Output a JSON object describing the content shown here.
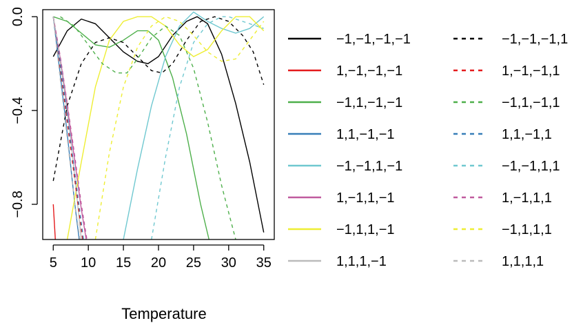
{
  "chart_data": {
    "type": "line",
    "title": "",
    "xlabel": "Temperature",
    "ylabel": "",
    "xlim": [
      3.5,
      36.5
    ],
    "ylim": [
      -0.95,
      0.03
    ],
    "xticks": [
      5,
      10,
      15,
      20,
      25,
      30,
      35
    ],
    "xtick_labels": [
      "5",
      "10",
      "15",
      "20",
      "25",
      "30",
      "35"
    ],
    "yticks": [
      0,
      -0.4,
      -0.8
    ],
    "ytick_labels": [
      "0.0",
      "−0.4",
      "−0.8"
    ],
    "legend_position": "right",
    "series": [
      {
        "name": "−1,−1,−1,−1",
        "color": "#000000",
        "dash": "solid",
        "x": [
          5,
          7,
          9,
          11,
          13,
          15,
          17,
          18.5,
          20,
          22,
          24,
          25.5,
          27,
          29,
          31,
          33,
          35
        ],
        "y": [
          -0.17,
          -0.06,
          -0.01,
          -0.03,
          -0.09,
          -0.15,
          -0.19,
          -0.2,
          -0.17,
          -0.08,
          -0.02,
          0.0,
          -0.03,
          -0.16,
          -0.37,
          -0.62,
          -0.92
        ]
      },
      {
        "name": "1,−1,−1,−1",
        "color": "#e41a1c",
        "dash": "solid",
        "x": [
          5,
          5.3
        ],
        "y": [
          -0.8,
          -0.95
        ]
      },
      {
        "name": "−1,1,−1,−1",
        "color": "#4daf4a",
        "dash": "solid",
        "x": [
          5,
          7,
          9,
          11,
          13,
          15,
          17,
          18.5,
          20,
          22,
          24,
          26,
          27.2
        ],
        "y": [
          0.0,
          -0.02,
          -0.07,
          -0.12,
          -0.13,
          -0.1,
          -0.06,
          -0.06,
          -0.1,
          -0.26,
          -0.5,
          -0.8,
          -0.95
        ]
      },
      {
        "name": "1,1,−1,−1",
        "color": "#377eb8",
        "dash": "solid",
        "x": [
          5,
          6,
          7,
          8,
          8.7
        ],
        "y": [
          0.0,
          -0.25,
          -0.5,
          -0.78,
          -0.95
        ]
      },
      {
        "name": "−1,−1,1,−1",
        "color": "#6fc8d0",
        "dash": "solid",
        "x": [
          15,
          17,
          19,
          21,
          23,
          25,
          27,
          29,
          31,
          33,
          35
        ],
        "y": [
          -0.95,
          -0.65,
          -0.38,
          -0.17,
          -0.04,
          0.02,
          -0.02,
          -0.05,
          -0.07,
          -0.05,
          0.0
        ]
      },
      {
        "name": "1,−1,1,−1",
        "color": "#c05a9e",
        "dash": "solid",
        "x": [
          5,
          6,
          7,
          8,
          9,
          9.7
        ],
        "y": [
          0.0,
          -0.18,
          -0.38,
          -0.6,
          -0.82,
          -0.95
        ]
      },
      {
        "name": "−1,1,1,−1",
        "color": "#eeee33",
        "dash": "solid",
        "x": [
          7,
          9,
          11,
          13,
          15,
          17,
          19,
          21,
          23,
          25,
          27,
          29,
          31,
          33,
          35
        ],
        "y": [
          -0.95,
          -0.62,
          -0.3,
          -0.1,
          -0.02,
          0.0,
          0.0,
          -0.04,
          -0.12,
          -0.17,
          -0.14,
          -0.06,
          0.0,
          0.0,
          -0.06
        ]
      },
      {
        "name": "1,1,1,−1",
        "color": "#bbbbbb",
        "dash": "solid",
        "x": [
          5,
          5.8,
          6.6,
          7.4,
          8.2,
          9
        ],
        "y": [
          0.0,
          -0.15,
          -0.32,
          -0.5,
          -0.72,
          -0.95
        ]
      },
      {
        "name": "−1,−1,−1,1",
        "color": "#000000",
        "dash": "dashed",
        "x": [
          5,
          7,
          9,
          11,
          13,
          15,
          17,
          19,
          20.5,
          22,
          24,
          26,
          28,
          30,
          32,
          33.5,
          35
        ],
        "y": [
          -0.7,
          -0.38,
          -0.2,
          -0.11,
          -0.09,
          -0.11,
          -0.17,
          -0.23,
          -0.24,
          -0.2,
          -0.1,
          -0.02,
          0.0,
          -0.02,
          -0.08,
          -0.15,
          -0.29
        ]
      },
      {
        "name": "1,−1,−1,1",
        "color": "#e41a1c",
        "dash": "dashed",
        "x": [
          5,
          6,
          7,
          8,
          9.2
        ],
        "y": [
          0.0,
          -0.22,
          -0.45,
          -0.68,
          -0.95
        ]
      },
      {
        "name": "−1,1,−1,1",
        "color": "#4daf4a",
        "dash": "dashed",
        "x": [
          6,
          8,
          10,
          12,
          14,
          15.5,
          17,
          19,
          21,
          23,
          25,
          27,
          29,
          31
        ],
        "y": [
          0.0,
          -0.04,
          -0.12,
          -0.2,
          -0.24,
          -0.24,
          -0.18,
          -0.09,
          -0.04,
          -0.08,
          -0.22,
          -0.45,
          -0.72,
          -0.95
        ]
      },
      {
        "name": "1,1,−1,1",
        "color": "#377eb8",
        "dash": "dashed",
        "x": [
          5,
          6,
          7,
          8,
          9.3
        ],
        "y": [
          0.0,
          -0.2,
          -0.42,
          -0.65,
          -0.95
        ]
      },
      {
        "name": "−1,−1,1,1",
        "color": "#6fc8d0",
        "dash": "dashed",
        "x": [
          19,
          21,
          23,
          25,
          27,
          29,
          30,
          31,
          33,
          35
        ],
        "y": [
          -0.95,
          -0.6,
          -0.3,
          -0.11,
          -0.03,
          0.0,
          0.0,
          -0.01,
          -0.03,
          -0.05
        ]
      },
      {
        "name": "1,−1,1,1",
        "color": "#c05a9e",
        "dash": "dashed",
        "x": [
          5,
          6,
          7,
          8,
          9,
          9.8
        ],
        "y": [
          0.0,
          -0.17,
          -0.37,
          -0.58,
          -0.8,
          -0.95
        ]
      },
      {
        "name": "−1,1,1,1",
        "color": "#eeee33",
        "dash": "dashed",
        "x": [
          11,
          13,
          15,
          17,
          19,
          21,
          23,
          25,
          27,
          29,
          31,
          33,
          35
        ],
        "y": [
          -0.95,
          -0.58,
          -0.3,
          -0.13,
          -0.04,
          0.0,
          -0.02,
          -0.08,
          -0.15,
          -0.19,
          -0.18,
          -0.1,
          -0.02
        ]
      },
      {
        "name": "1,1,1,1",
        "color": "#bbbbbb",
        "dash": "dashed",
        "x": [
          5,
          6,
          7,
          8,
          8.8
        ],
        "y": [
          0.0,
          -0.27,
          -0.52,
          -0.78,
          -0.95
        ]
      }
    ]
  }
}
